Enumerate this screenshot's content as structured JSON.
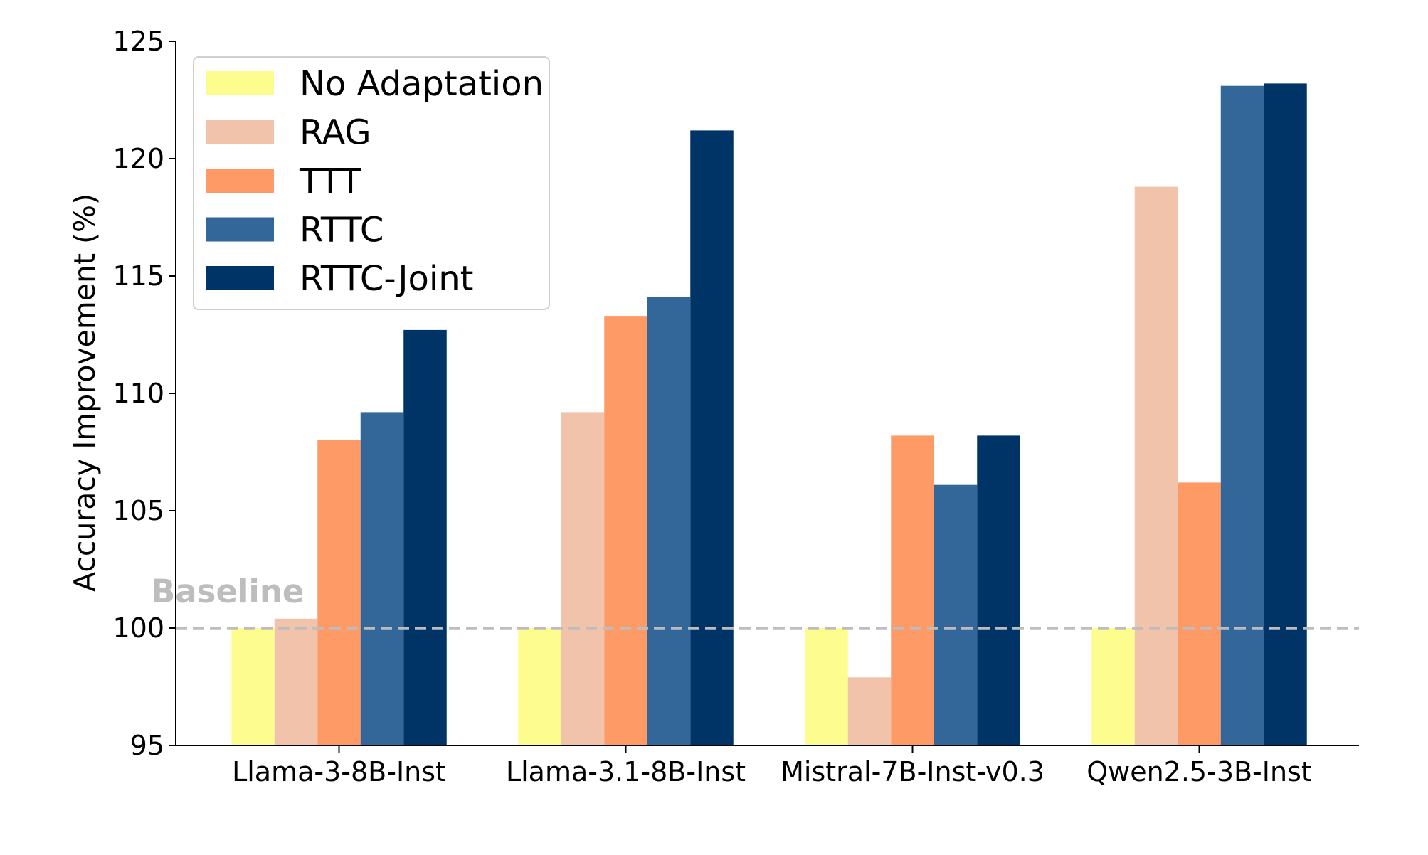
{
  "chart_data": {
    "type": "bar",
    "categories": [
      "Llama-3-8B-Inst",
      "Llama-3.1-8B-Inst",
      "Mistral-7B-Inst-v0.3",
      "Qwen2.5-3B-Inst"
    ],
    "series": [
      {
        "name": "No Adaptation",
        "color": "#fdfd8f",
        "values": [
          100.0,
          100.0,
          100.0,
          100.0
        ]
      },
      {
        "name": "RAG",
        "color": "#f0c3aa",
        "values": [
          100.4,
          109.2,
          97.9,
          118.8
        ]
      },
      {
        "name": "TTT",
        "color": "#fe9a66",
        "values": [
          108.0,
          113.3,
          108.2,
          106.2
        ]
      },
      {
        "name": "RTTC",
        "color": "#336699",
        "values": [
          109.2,
          114.1,
          106.1,
          123.1
        ]
      },
      {
        "name": "RTTC-Joint",
        "color": "#003366",
        "values": [
          112.7,
          121.2,
          108.2,
          123.2
        ]
      }
    ],
    "title": "",
    "xlabel": "",
    "ylabel": "Accuracy Improvement (%)",
    "ylim": [
      95,
      125
    ],
    "yticks": [
      "95",
      "100",
      "105",
      "110",
      "115",
      "120",
      "125"
    ],
    "grid": false,
    "legend_position": "top-left",
    "reference_line": {
      "value": 100,
      "label": "Baseline",
      "color": "#bdbdbd",
      "style": "dashed"
    }
  }
}
